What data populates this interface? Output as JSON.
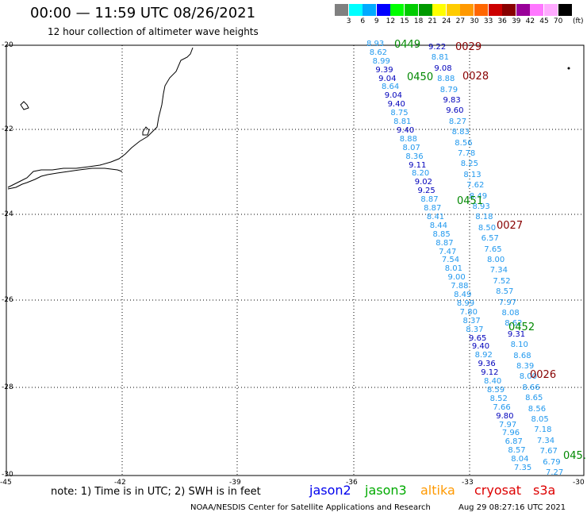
{
  "header": {
    "title": "00:00 — 11:59 UTC 08/26/2021",
    "subtitle": "12 hour collection of altimeter wave heights"
  },
  "colorbar": {
    "unit": "(ft)",
    "colors": [
      "#808080",
      "#00ffff",
      "#00aaff",
      "#0000ff",
      "#00ff00",
      "#00cc00",
      "#009900",
      "#ffff00",
      "#ffcc00",
      "#ff9900",
      "#ff6600",
      "#cc0000",
      "#880000",
      "#990099",
      "#ff77ff",
      "#ffaaff",
      "#000000"
    ],
    "ticks": [
      "3",
      "6",
      "9",
      "12",
      "15",
      "18",
      "21",
      "24",
      "27",
      "30",
      "33",
      "36",
      "39",
      "42",
      "45",
      "70"
    ]
  },
  "axes": {
    "lat_labels": [
      "-20",
      "-22",
      "-24",
      "-26",
      "-28",
      "-30"
    ],
    "lon_labels": [
      "-45",
      "-42",
      "-39",
      "-36",
      "-33",
      "-30"
    ]
  },
  "passes": [
    {
      "label": "0449",
      "color": "#008800"
    },
    {
      "label": "0029",
      "color": "#880000"
    },
    {
      "label": "0450",
      "color": "#008800"
    },
    {
      "label": "0028",
      "color": "#880000"
    },
    {
      "label": "0451",
      "color": "#008800"
    },
    {
      "label": "0027",
      "color": "#880000"
    },
    {
      "label": "0452",
      "color": "#008800"
    },
    {
      "label": "0026",
      "color": "#880000"
    },
    {
      "label": "045.",
      "color": "#008800"
    }
  ],
  "track_a": {
    "values": [
      "8.93",
      "8.62",
      "8.99",
      "9.39",
      "9.04",
      "8.64",
      "9.04",
      "9.40",
      "8.75",
      "8.81",
      "9.40",
      "8.88",
      "8.07",
      "8.36",
      "9.11",
      "8.20",
      "9.02",
      "9.25",
      "8.87",
      "8.87",
      "8.41",
      "8.44",
      "8.85",
      "8.87",
      "7.47",
      "7.54",
      "8.01",
      "9.00",
      "7.88",
      "8.49",
      "8.99",
      "7.80",
      "8.37",
      "8.37",
      "9.65",
      "9.40",
      "8.92",
      "9.36",
      "9.12",
      "8.40",
      "8.59",
      "8.52",
      "7.66",
      "9.80",
      "7.97",
      "7.96",
      "6.87",
      "8.57",
      "8.04",
      "7.35"
    ],
    "colors": [
      "#2299ee",
      "#2299ee",
      "#2299ee",
      "#0000bb",
      "#0000bb",
      "#2299ee",
      "#0000bb",
      "#0000bb",
      "#2299ee",
      "#2299ee",
      "#0000bb",
      "#2299ee",
      "#2299ee",
      "#2299ee",
      "#0000bb",
      "#2299ee",
      "#0000bb",
      "#0000bb",
      "#2299ee",
      "#2299ee",
      "#2299ee",
      "#2299ee",
      "#2299ee",
      "#2299ee",
      "#2299ee",
      "#2299ee",
      "#2299ee",
      "#2299ee",
      "#2299ee",
      "#2299ee",
      "#2299ee",
      "#2299ee",
      "#2299ee",
      "#2299ee",
      "#0000bb",
      "#0000bb",
      "#2299ee",
      "#0000bb",
      "#0000bb",
      "#2299ee",
      "#2299ee",
      "#2299ee",
      "#2299ee",
      "#0000bb",
      "#2299ee",
      "#2299ee",
      "#2299ee",
      "#2299ee",
      "#2299ee",
      "#2299ee"
    ]
  },
  "track_b": {
    "values": [
      "9.22",
      "8.81",
      "9.08",
      "8.88",
      "8.79",
      "9.83",
      "9.60",
      "8.27",
      "8.83",
      "8.56",
      "7.78",
      "8.25",
      "8.13",
      "7.62",
      "8.49",
      "8.93",
      "8.18",
      "8.50",
      "6.57",
      "7.65",
      "8.00",
      "7.34",
      "7.52",
      "8.57",
      "7.97",
      "8.08",
      "8.62",
      "9.31",
      "8.10",
      "8.68",
      "8.39",
      "8.00",
      "8.66",
      "8.65",
      "8.56",
      "8.05",
      "7.18",
      "7.34",
      "7.67",
      "6.79",
      "7.27"
    ],
    "colors": [
      "#0000bb",
      "#2299ee",
      "#0000bb",
      "#2299ee",
      "#2299ee",
      "#0000bb",
      "#0000bb",
      "#2299ee",
      "#2299ee",
      "#2299ee",
      "#2299ee",
      "#2299ee",
      "#2299ee",
      "#2299ee",
      "#2299ee",
      "#2299ee",
      "#2299ee",
      "#2299ee",
      "#2299ee",
      "#2299ee",
      "#2299ee",
      "#2299ee",
      "#2299ee",
      "#2299ee",
      "#2299ee",
      "#2299ee",
      "#2299ee",
      "#0000bb",
      "#2299ee",
      "#2299ee",
      "#2299ee",
      "#2299ee",
      "#2299ee",
      "#2299ee",
      "#2299ee",
      "#2299ee",
      "#2299ee",
      "#2299ee",
      "#2299ee",
      "#2299ee",
      "#2299ee"
    ]
  },
  "footer": {
    "note": "note: 1) Time is in UTC; 2) SWH is in feet",
    "satellites": [
      {
        "name": "jason2",
        "color": "#0000ee"
      },
      {
        "name": "jason3",
        "color": "#00aa00"
      },
      {
        "name": "altika",
        "color": "#ff9900"
      },
      {
        "name": "cryosat",
        "color": "#dd0000"
      },
      {
        "name": "s3a",
        "color": "#dd0000"
      }
    ],
    "credit": "NOAA/NESDIS Center for Satellite Applications and Research",
    "generated": "Aug 29 08:27:16 UTC 2021"
  }
}
